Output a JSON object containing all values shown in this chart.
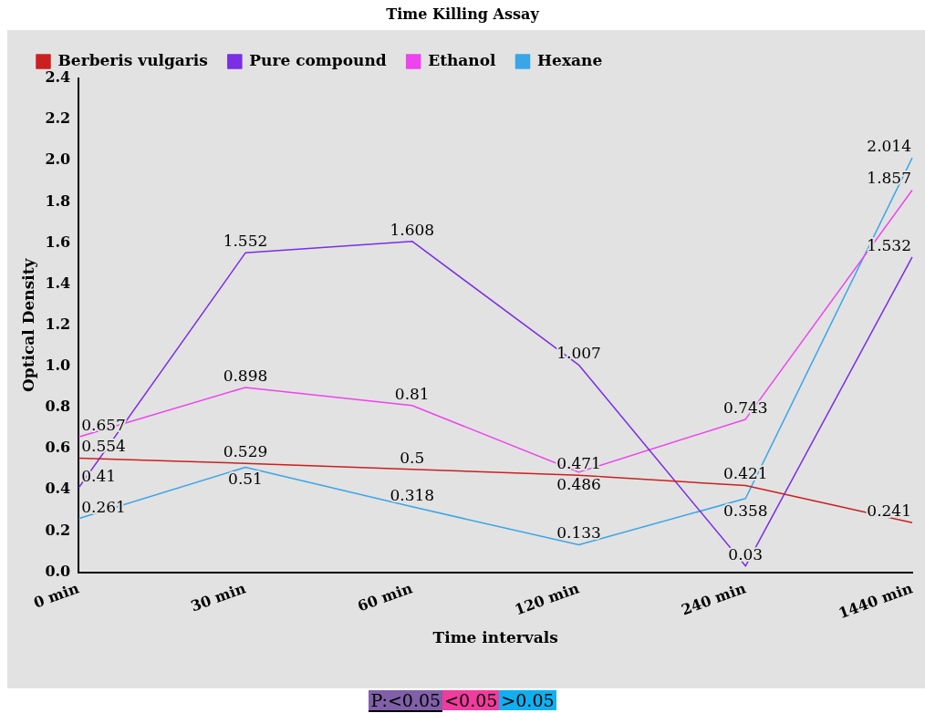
{
  "chart_data": {
    "type": "line",
    "title": "Time Killing Assay",
    "xlabel": "Time intervals",
    "ylabel": "Optical Density",
    "categories": [
      "0 min",
      "30 min",
      "60 min",
      "120 min",
      "240 min",
      "1440 min"
    ],
    "series": [
      {
        "name": "Berberis vulgaris",
        "color": "#cc2020",
        "values": [
          0.554,
          0.529,
          0.5,
          0.471,
          0.421,
          0.241
        ]
      },
      {
        "name": "Pure compound",
        "color": "#7a2ee6",
        "values": [
          0.41,
          1.552,
          1.608,
          1.007,
          0.03,
          1.532
        ]
      },
      {
        "name": "Ethanol",
        "color": "#ee44ee",
        "values": [
          0.657,
          0.898,
          0.81,
          0.486,
          0.743,
          1.857
        ]
      },
      {
        "name": "Hexane",
        "color": "#3aa6e8",
        "values": [
          0.261,
          0.51,
          0.318,
          0.133,
          0.358,
          2.014
        ]
      }
    ],
    "ylim": [
      0,
      2.4
    ],
    "yticks": [
      {
        "value": 0,
        "label": "0.0"
      },
      0.2,
      0.4,
      0.6,
      0.8,
      {
        "value": 1,
        "label": "1.0"
      },
      1.2,
      1.4,
      1.6,
      1.8,
      {
        "value": 2,
        "label": "2.0"
      },
      2.2,
      2.4
    ],
    "grid": false,
    "legend": "top",
    "marker": "none",
    "line_style": "solid",
    "data_labels": true,
    "annotations": [
      "P:<0.05",
      "<0.05",
      ">0.05"
    ]
  }
}
